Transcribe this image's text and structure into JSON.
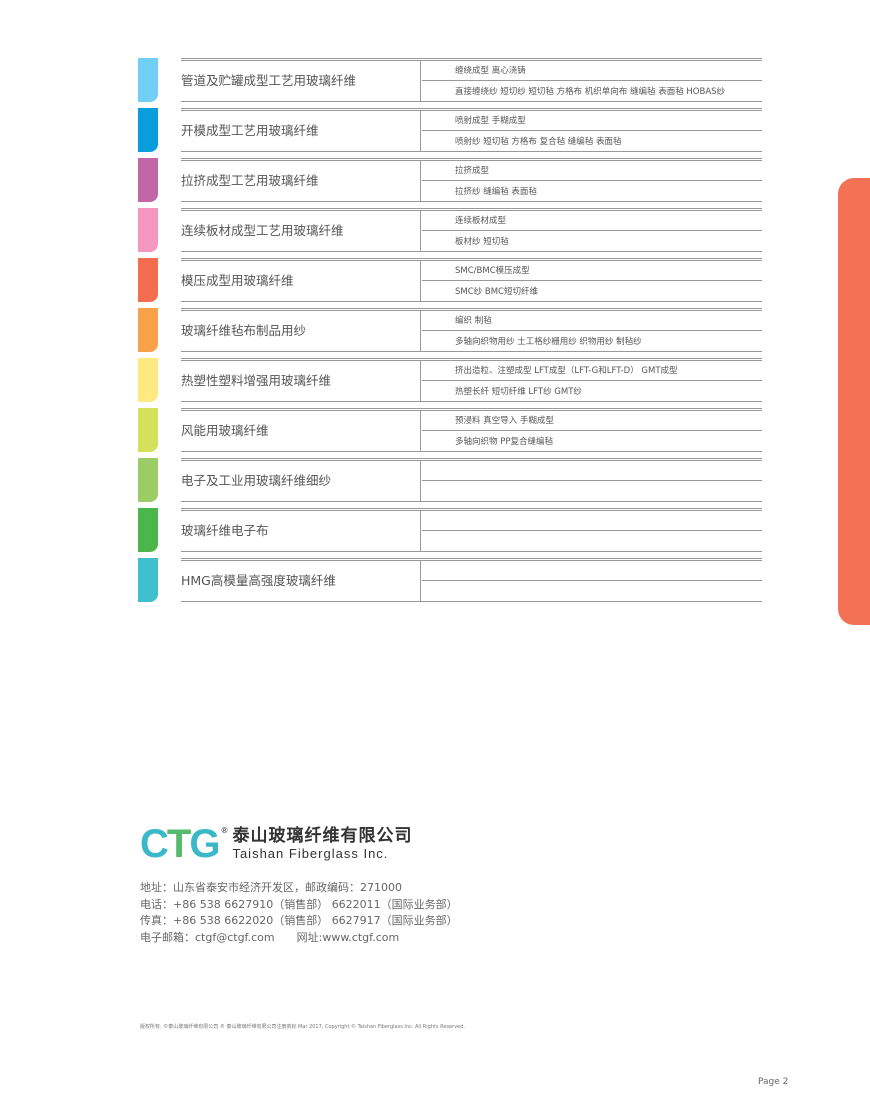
{
  "rows": [
    {
      "name": "管道及贮罐成型工艺用玻璃纤维",
      "process": "缠绕成型 离心浇铸",
      "products": "直接缠绕纱 短切纱 短切毡 方格布 机织单向布 缝编毡 表面毡 HOBAS纱",
      "color": "#6fcff4"
    },
    {
      "name": "开模成型工艺用玻璃纤维",
      "process": "喷射成型 手糊成型",
      "products": "喷射纱 短切毡 方格布 复合毡 缝编毡 表面毡",
      "color": "#0a9ddb"
    },
    {
      "name": "拉挤成型工艺用玻璃纤维",
      "process": "拉挤成型",
      "products": "拉挤纱 缝编毡 表面毡",
      "color": "#c167a8"
    },
    {
      "name": "连续板材成型工艺用玻璃纤维",
      "process": "连续板材成型",
      "products": "板材纱 短切毡",
      "color": "#f598c1"
    },
    {
      "name": "模压成型用玻璃纤维",
      "process": "SMC/BMC模压成型",
      "products": "SMC纱 BMC短切纤维",
      "color": "#f36d51"
    },
    {
      "name": "玻璃纤维毡布制品用纱",
      "process": "编织 制毡",
      "products": "多轴向织物用纱 土工格纱栅用纱 织物用纱 制毡纱",
      "color": "#f9a24b"
    },
    {
      "name": "热塑性塑料增强用玻璃纤维",
      "process": "挤出造粒、注塑成型 LFT成型（LFT-G和LFT-D） GMT成型",
      "products": "热塑长纤 短切纤维 LFT纱 GMT纱",
      "color": "#feea80"
    },
    {
      "name": "风能用玻璃纤维",
      "process": "预浸料 真空导入 手糊成型",
      "products": "多轴向织物 PP复合缝编毡",
      "color": "#d5e05b"
    },
    {
      "name": "电子及工业用玻璃纤维细纱",
      "process": "",
      "products": "",
      "color": "#9ccc65"
    },
    {
      "name": "玻璃纤维电子布",
      "process": "",
      "products": "",
      "color": "#4bb64a"
    },
    {
      "name": "HMG高模量高强度玻璃纤维",
      "process": "",
      "products": "",
      "color": "#40c0cf"
    }
  ],
  "side_tab_color": "#f37155",
  "logo": {
    "mark": "CTG",
    "cn": "泰山玻璃纤维有限公司",
    "en": "Taishan Fiberglass Inc."
  },
  "contact": [
    "地址：山东省泰安市经济开发区，邮政编码：271000",
    "电话：+86 538 6627910（销售部） 6622011（国际业务部）",
    "传真：+86 538 6622020（销售部） 6627917（国际业务部）",
    "电子邮箱：ctgf@ctgf.com　　网址:www.ctgf.com"
  ],
  "legal": "版权所有: ©泰山玻璃纤维有限公司 ® 泰山玻璃纤维有限公司注册商标  Mar 2017, Copyright © Taishan Fiberglass Inc. All Rights Reserved.",
  "page": "Page 2"
}
